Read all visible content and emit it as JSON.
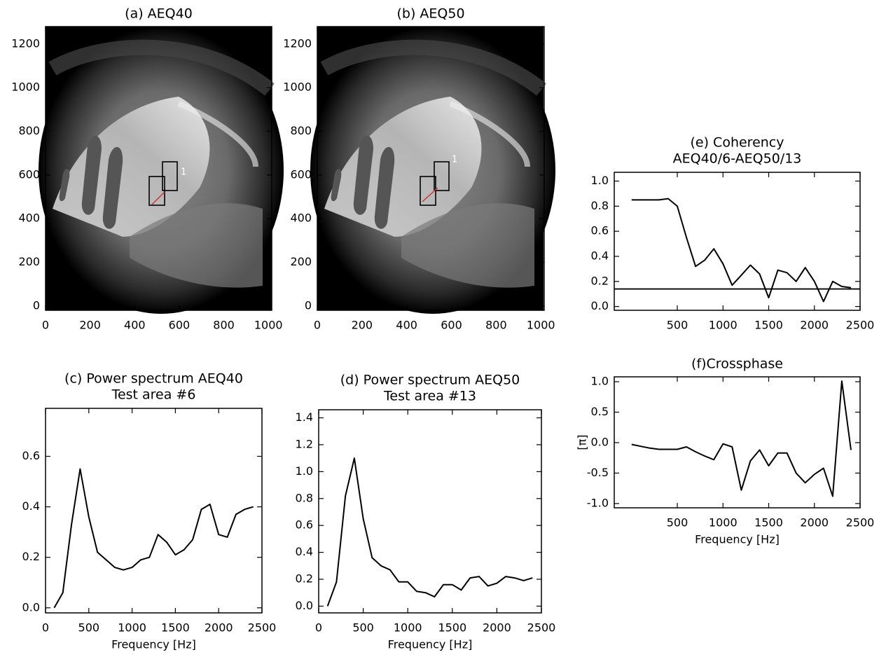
{
  "chart_data": [
    {
      "type": "image",
      "title": "(a) AEQ40",
      "annotation": "1",
      "xlim": [
        0,
        1015
      ],
      "xticks": [
        0,
        200,
        400,
        600,
        800,
        1000
      ],
      "ylim": [
        -20,
        1280
      ],
      "yticks": [
        0,
        200,
        400,
        600,
        800,
        1000,
        1200
      ]
    },
    {
      "type": "image",
      "title": "(b) AEQ50",
      "annotation": "1",
      "xlim": [
        0,
        1015
      ],
      "xticks": [
        0,
        200,
        400,
        600,
        800,
        1000
      ],
      "ylim": [
        -20,
        1280
      ],
      "yticks": [
        0,
        200,
        400,
        600,
        800,
        1000,
        1200
      ]
    },
    {
      "type": "line",
      "title": "(c) Power spectrum AEQ40",
      "subtitle": "Test area #6",
      "xlabel": "Frequency [Hz]",
      "color": "#000000",
      "xlim": [
        0,
        2500
      ],
      "xticks": [
        0,
        500,
        1000,
        1500,
        2000,
        2500
      ],
      "ylim": [
        -0.02,
        0.79
      ],
      "yticks": [
        {
          "value": 0,
          "label": "0.0"
        },
        0.2,
        0.4,
        0.6
      ],
      "x": [
        100,
        200,
        300,
        400,
        500,
        600,
        700,
        800,
        900,
        1000,
        1100,
        1200,
        1300,
        1400,
        1500,
        1600,
        1700,
        1800,
        1900,
        2000,
        2100,
        2200,
        2300,
        2400
      ],
      "values": [
        0,
        0.06,
        0.33,
        0.55,
        0.36,
        0.22,
        0.19,
        0.16,
        0.15,
        0.16,
        0.19,
        0.2,
        0.29,
        0.26,
        0.21,
        0.23,
        0.27,
        0.39,
        0.41,
        0.29,
        0.28,
        0.37,
        0.39,
        0.4
      ]
    },
    {
      "type": "line",
      "title": "(d) Power spectrum AEQ50",
      "subtitle": "Test area #13",
      "xlabel": "Frequency [Hz]",
      "color": "#000000",
      "xlim": [
        0,
        2500
      ],
      "xticks": [
        0,
        500,
        1000,
        1500,
        2000,
        2500
      ],
      "ylim": [
        -0.05,
        1.46
      ],
      "yticks": [
        {
          "value": 0,
          "label": "0.0"
        },
        0.2,
        0.4,
        0.6,
        0.8,
        {
          "value": 1,
          "label": "1.0"
        },
        1.2,
        1.4
      ],
      "x": [
        100,
        200,
        300,
        400,
        500,
        600,
        700,
        800,
        900,
        1000,
        1100,
        1200,
        1300,
        1400,
        1500,
        1600,
        1700,
        1800,
        1900,
        2000,
        2100,
        2200,
        2300,
        2400
      ],
      "values": [
        0,
        0.18,
        0.82,
        1.1,
        0.65,
        0.36,
        0.3,
        0.27,
        0.18,
        0.18,
        0.11,
        0.1,
        0.07,
        0.16,
        0.16,
        0.12,
        0.21,
        0.22,
        0.15,
        0.17,
        0.22,
        0.21,
        0.19,
        0.21
      ]
    },
    {
      "type": "line",
      "title": "(e) Coherency",
      "subtitle": "AEQ40/6-AEQ50/13",
      "color": "#000000",
      "threshold": 0.14,
      "xlim": [
        -190,
        2500
      ],
      "xticks": [
        500,
        1000,
        1500,
        2000,
        2500
      ],
      "ylim": [
        -0.03,
        1.07
      ],
      "yticks": [
        {
          "value": 0,
          "label": "0.0"
        },
        0.2,
        0.4,
        0.6,
        0.8,
        {
          "value": 1,
          "label": "1.0"
        }
      ],
      "x": [
        0,
        100,
        200,
        300,
        400,
        500,
        600,
        700,
        800,
        900,
        1000,
        1100,
        1200,
        1300,
        1400,
        1500,
        1600,
        1700,
        1800,
        1900,
        2000,
        2100,
        2200,
        2300,
        2400
      ],
      "values": [
        0.85,
        0.85,
        0.85,
        0.85,
        0.86,
        0.8,
        0.55,
        0.32,
        0.37,
        0.46,
        0.34,
        0.17,
        0.25,
        0.33,
        0.26,
        0.07,
        0.29,
        0.27,
        0.2,
        0.31,
        0.2,
        0.04,
        0.2,
        0.16,
        0.15
      ]
    },
    {
      "type": "line",
      "title": "(f)Crossphase",
      "xlabel": "Frequency [Hz]",
      "ylabel": "[π]",
      "color": "#000000",
      "xlim": [
        -190,
        2500
      ],
      "xticks": [
        500,
        1000,
        1500,
        2000,
        2500
      ],
      "ylim": [
        -1.07,
        1.08
      ],
      "yticks": [
        {
          "value": -1,
          "label": "-1.0"
        },
        -0.5,
        {
          "value": 0,
          "label": "0.0"
        },
        0.5,
        {
          "value": 1,
          "label": "1.0"
        }
      ],
      "x": [
        0,
        100,
        200,
        300,
        400,
        500,
        600,
        700,
        800,
        900,
        1000,
        1100,
        1200,
        1300,
        1400,
        1500,
        1600,
        1700,
        1800,
        1900,
        2000,
        2100,
        2200,
        2300,
        2400
      ],
      "values": [
        -0.03,
        -0.06,
        -0.09,
        -0.11,
        -0.11,
        -0.11,
        -0.07,
        -0.15,
        -0.22,
        -0.28,
        -0.02,
        -0.07,
        -0.78,
        -0.3,
        -0.12,
        -0.38,
        -0.17,
        -0.17,
        -0.5,
        -0.66,
        -0.52,
        -0.42,
        -0.88,
        1.01,
        -0.12
      ]
    }
  ]
}
